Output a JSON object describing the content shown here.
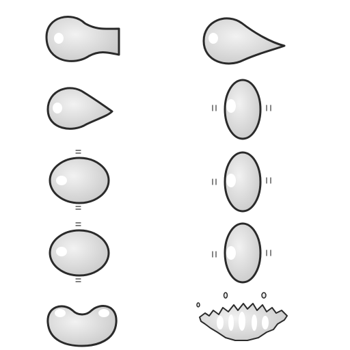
{
  "sprite_sheet": {
    "asset": "slime-drop-animation",
    "colors": {
      "background": "#ffffff",
      "fill_light": "#ececec",
      "fill_dark": "#c8c8c8",
      "outline": "#2a2a2a",
      "highlight": "#ffffff"
    },
    "columns": [
      {
        "name": "drip-and-fall",
        "frames": [
          {
            "index": 1,
            "pose": "pinching-from-surface"
          },
          {
            "index": 2,
            "pose": "teardrop"
          },
          {
            "index": 3,
            "pose": "round-vertical-wobble"
          },
          {
            "index": 4,
            "pose": "round-vertical-wobble"
          },
          {
            "index": 5,
            "pose": "squash-on-landing"
          }
        ]
      },
      {
        "name": "stretch-and-splash",
        "frames": [
          {
            "index": 1,
            "pose": "long-teardrop"
          },
          {
            "index": 2,
            "pose": "oval-side-wobble"
          },
          {
            "index": 3,
            "pose": "oval-side-wobble"
          },
          {
            "index": 4,
            "pose": "oval-side-wobble"
          },
          {
            "index": 5,
            "pose": "splash"
          }
        ]
      }
    ]
  }
}
